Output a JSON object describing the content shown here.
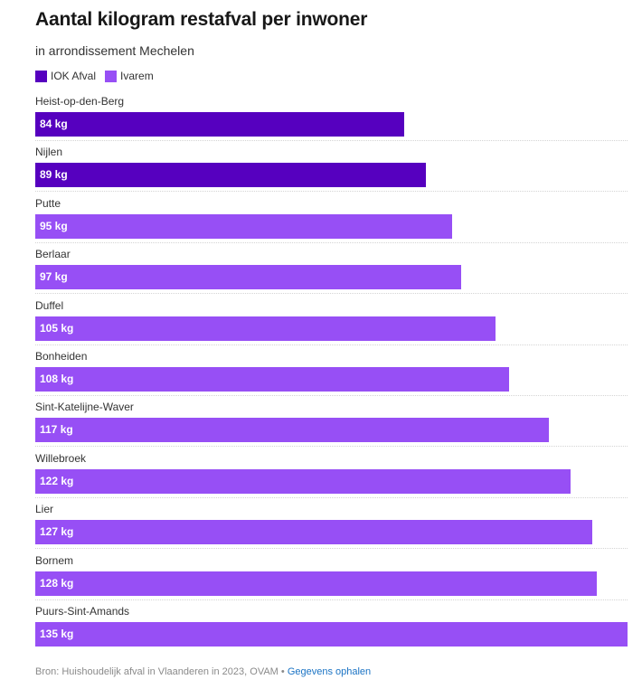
{
  "chart_data": {
    "type": "bar",
    "orientation": "horizontal",
    "title": "Aantal kilogram restafval per inwoner",
    "subtitle": "in arrondissement Mechelen",
    "legend": [
      {
        "name": "IOK Afval",
        "color": "#5600bf"
      },
      {
        "name": "Ivarem",
        "color": "#974ff5"
      }
    ],
    "unit": "kg",
    "xlim": [
      0,
      135
    ],
    "categories": [
      "Heist-op-den-Berg",
      "Nijlen",
      "Putte",
      "Berlaar",
      "Duffel",
      "Bonheiden",
      "Sint-Katelijne-Waver",
      "Willebroek",
      "Lier",
      "Bornem",
      "Puurs-Sint-Amands"
    ],
    "values": [
      84,
      89,
      95,
      97,
      105,
      108,
      117,
      122,
      127,
      128,
      135
    ],
    "value_labels": [
      "84 kg",
      "89 kg",
      "95 kg",
      "97 kg",
      "105 kg",
      "108 kg",
      "117 kg",
      "122 kg",
      "127 kg",
      "128 kg",
      "135 kg"
    ],
    "groups": [
      "IOK Afval",
      "IOK Afval",
      "Ivarem",
      "Ivarem",
      "Ivarem",
      "Ivarem",
      "Ivarem",
      "Ivarem",
      "Ivarem",
      "Ivarem",
      "Ivarem"
    ]
  },
  "footer": {
    "source": "Bron: Huishoudelijk afval in Vlaanderen in 2023, OVAM",
    "separator": " • ",
    "link_label": "Gegevens ophalen",
    "link_color": "#1a73c4"
  }
}
